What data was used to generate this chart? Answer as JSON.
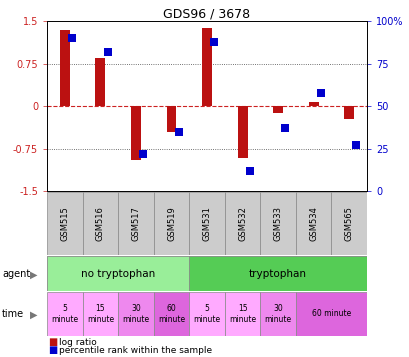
{
  "title": "GDS96 / 3678",
  "samples": [
    "GSM515",
    "GSM516",
    "GSM517",
    "GSM519",
    "GSM531",
    "GSM532",
    "GSM533",
    "GSM534",
    "GSM565"
  ],
  "log_ratio": [
    1.35,
    0.85,
    -0.95,
    -0.45,
    1.38,
    -0.92,
    -0.12,
    0.08,
    -0.22
  ],
  "percentile": [
    90,
    82,
    22,
    35,
    88,
    12,
    37,
    58,
    27
  ],
  "ylim_left": [
    -1.5,
    1.5
  ],
  "ylim_right": [
    0,
    100
  ],
  "yticks_left": [
    -1.5,
    -0.75,
    0,
    0.75,
    1.5
  ],
  "yticks_right": [
    0,
    25,
    50,
    75,
    100
  ],
  "bar_color": "#bb1111",
  "dot_color": "#0000cc",
  "zero_line_color": "#cc2222",
  "dotted_line_color": "#444444",
  "tick_label_color_left": "#cc2222",
  "tick_label_color_right": "#0000cc",
  "agent_groups": [
    {
      "label": "no tryptophan",
      "start": 0,
      "end": 4,
      "color": "#99ee99"
    },
    {
      "label": "tryptophan",
      "start": 4,
      "end": 9,
      "color": "#55cc55"
    }
  ],
  "time_cells": [
    {
      "label": "5\nminute",
      "col": 0,
      "span": 1,
      "color": "#ffaaff"
    },
    {
      "label": "15\nminute",
      "col": 1,
      "span": 1,
      "color": "#ffaaff"
    },
    {
      "label": "30\nminute",
      "col": 2,
      "span": 1,
      "color": "#ee88ee"
    },
    {
      "label": "60\nminute",
      "col": 3,
      "span": 1,
      "color": "#dd66dd"
    },
    {
      "label": "5\nminute",
      "col": 4,
      "span": 1,
      "color": "#ffaaff"
    },
    {
      "label": "15\nminute",
      "col": 5,
      "span": 1,
      "color": "#ffaaff"
    },
    {
      "label": "30\nminute",
      "col": 6,
      "span": 1,
      "color": "#ee88ee"
    },
    {
      "label": "60 minute",
      "col": 7,
      "span": 2,
      "color": "#dd66dd"
    }
  ],
  "sample_bg": "#cccccc",
  "legend_red_label": "log ratio",
  "legend_blue_label": "percentile rank within the sample"
}
